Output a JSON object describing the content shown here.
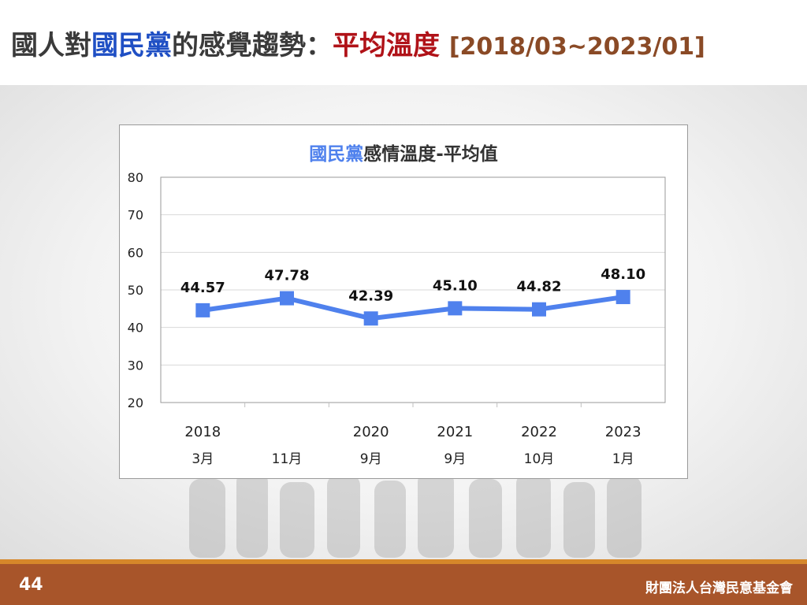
{
  "slide": {
    "title_part1": "國人對",
    "title_part2": "國民黨",
    "title_part3": "的感覺趨勢：",
    "title_part4": "平均溫度",
    "title_part5": "[2018/03~2023/01]",
    "page_number": "44",
    "organization": "財團法人台灣民意基金會"
  },
  "colors": {
    "series": "#4f81ed",
    "title_blue": "#1f4fc4",
    "title_red": "#b01218",
    "footer": "#a8552a",
    "footer_accent": "#d6872a"
  },
  "chart_data": {
    "type": "line",
    "title_party": "國民黨",
    "title_rest": "感情溫度-平均值",
    "x_year": [
      "2018",
      "",
      "2020",
      "2021",
      "2022",
      "2023"
    ],
    "x_month": [
      "3月",
      "11月",
      "9月",
      "9月",
      "10月",
      "1月"
    ],
    "series": [
      {
        "values": [
          44.57,
          47.78,
          42.39,
          45.1,
          44.82,
          48.1
        ],
        "labels": [
          "44.57",
          "47.78",
          "42.39",
          "45.10",
          "44.82",
          "48.10"
        ]
      }
    ],
    "ylim": [
      20,
      80
    ],
    "yticks": [
      "20",
      "30",
      "40",
      "50",
      "60",
      "70",
      "80"
    ],
    "grid": true,
    "legend": "none"
  }
}
